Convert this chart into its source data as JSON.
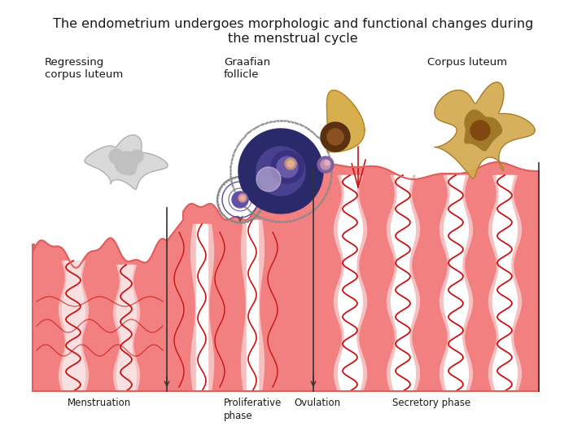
{
  "title_line1": "The endometrium undergoes morphologic and functional changes during",
  "title_line2": "the menstrual cycle",
  "title_fontsize": 11.5,
  "title_color": "#1a1a1a",
  "bg_color": "#ffffff",
  "label_regressing": "Regressing\ncorpus luteum",
  "label_graafian": "Graafian\nfollicle",
  "label_corpus": "Corpus luteum",
  "phase_menstruation": "Menstruation",
  "phase_proliferative": "Proliferative\nphase",
  "phase_ovulation": "Ovulation",
  "phase_secretory": "Secretory phase",
  "endo_pink": "#f08080",
  "endo_light": "#f5b5b5",
  "endo_border": "#e87070",
  "blood_red": "#cc1111",
  "gland_white": "#ffffff",
  "label_fontsize": 9.5,
  "phase_fontsize": 8.5
}
